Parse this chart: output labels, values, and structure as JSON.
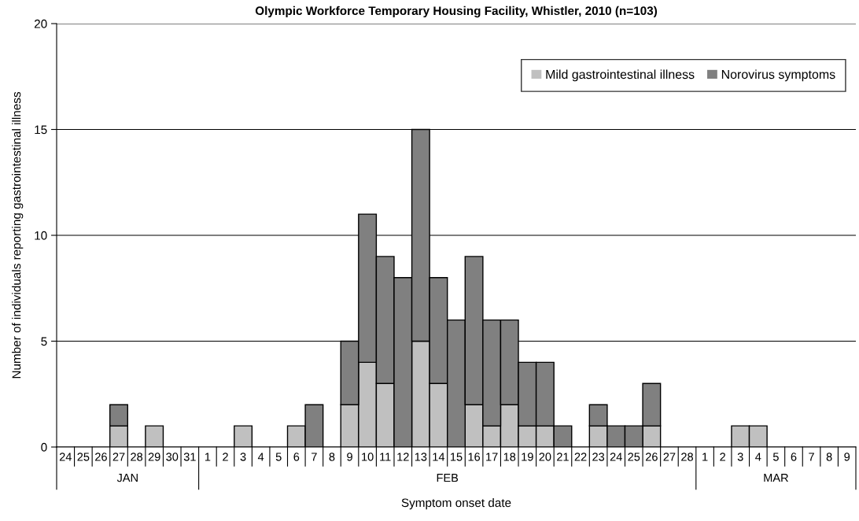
{
  "chart_data": {
    "type": "bar",
    "stacked": true,
    "title": "Olympic Workforce Temporary Housing Facility, Whistler, 2010 (n=103)",
    "xlabel": "Symptom onset date",
    "ylabel": "Number of individuals reporting gastrointestinal illness",
    "categories": [
      "24",
      "25",
      "26",
      "27",
      "28",
      "29",
      "30",
      "31",
      "1",
      "2",
      "3",
      "4",
      "5",
      "6",
      "7",
      "8",
      "9",
      "10",
      "11",
      "12",
      "13",
      "14",
      "15",
      "16",
      "17",
      "18",
      "19",
      "20",
      "21",
      "22",
      "23",
      "24",
      "25",
      "26",
      "27",
      "28",
      "1",
      "2",
      "3",
      "4",
      "5",
      "6",
      "7",
      "8",
      "9"
    ],
    "series": [
      {
        "name": "Mild gastrointestinal illness",
        "color": "#c0c0c0",
        "values": [
          0,
          0,
          0,
          1,
          0,
          1,
          0,
          0,
          0,
          0,
          1,
          0,
          0,
          1,
          0,
          0,
          2,
          4,
          3,
          0,
          5,
          3,
          0,
          2,
          1,
          2,
          1,
          1,
          0,
          0,
          1,
          0,
          0,
          1,
          0,
          0,
          0,
          0,
          1,
          1,
          0,
          0,
          0,
          0,
          0
        ]
      },
      {
        "name": "Norovirus symptoms",
        "color": "#808080",
        "values": [
          0,
          0,
          0,
          1,
          0,
          0,
          0,
          0,
          0,
          0,
          0,
          0,
          0,
          0,
          2,
          0,
          3,
          7,
          6,
          8,
          10,
          5,
          6,
          7,
          5,
          4,
          3,
          3,
          1,
          0,
          1,
          1,
          1,
          2,
          0,
          0,
          0,
          0,
          0,
          0,
          0,
          0,
          0,
          0,
          0
        ]
      }
    ],
    "annotations": [
      "JAN",
      "FEB",
      "MAR"
    ],
    "ylim": [
      0,
      20
    ],
    "yticks": [
      0,
      5,
      10,
      15,
      20
    ],
    "grid": "y",
    "legend": "top right"
  }
}
